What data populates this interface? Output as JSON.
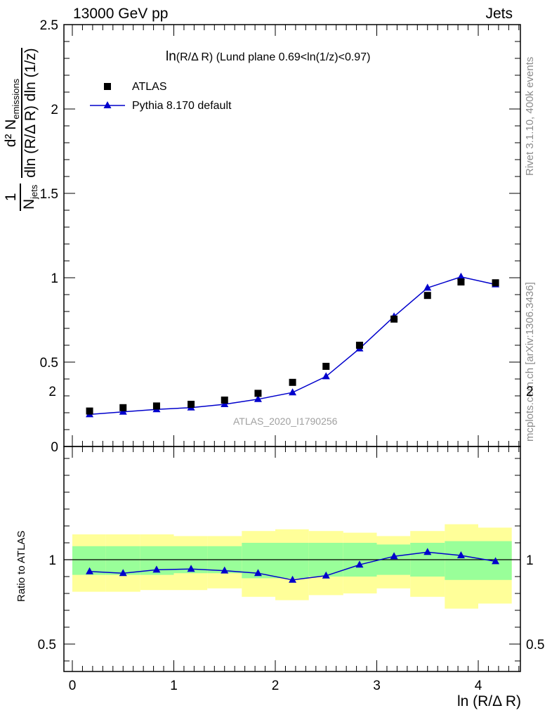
{
  "header": {
    "left": "13000 GeV pp",
    "right": "Jets"
  },
  "plot_title": {
    "main": "ln",
    "rest": "(R/Δ R) (Lund plane 0.69<ln(1/z)<0.97)"
  },
  "watermark": "ATLAS_2020_I1790256",
  "side_labels": {
    "rivet": "Rivet 3.1.10,  400k events",
    "mcplots": "mcplots.cern.ch [arXiv:1306.3436]"
  },
  "y_axis_main": {
    "frac_num": "1",
    "frac_den_n": "N",
    "frac_den_n_sub": "jets",
    "label_num": "d² N",
    "label_num_sub": "emissions",
    "label_den": "dln (R/Δ R) dln (1/z)"
  },
  "y_axis_ratio": "Ratio to ATLAS",
  "x_axis": "ln (R/Δ R)",
  "legend": [
    {
      "name": "ATLAS",
      "marker": "square",
      "color": "#000000"
    },
    {
      "name": "Pythia 8.170 default",
      "marker": "triangle",
      "color": "#0000cc"
    }
  ],
  "chart_data": [
    {
      "type": "scatter",
      "panel": "main",
      "x": [
        0.17,
        0.5,
        0.83,
        1.17,
        1.5,
        1.83,
        2.17,
        2.5,
        2.83,
        3.17,
        3.5,
        3.83,
        4.17
      ],
      "series": [
        {
          "name": "ATLAS",
          "values": [
            0.21,
            0.23,
            0.24,
            0.25,
            0.275,
            0.315,
            0.38,
            0.475,
            0.6,
            0.755,
            0.895,
            0.975,
            0.97
          ]
        },
        {
          "name": "Pythia 8.170 default",
          "values": [
            0.19,
            0.205,
            0.22,
            0.23,
            0.25,
            0.28,
            0.32,
            0.415,
            0.58,
            0.77,
            0.94,
            1.005,
            0.96
          ]
        }
      ],
      "xlim": [
        -0.1,
        4.4
      ],
      "ylim": [
        0,
        2.5
      ],
      "yticks": [
        "0",
        "0.5",
        "1",
        "1.5",
        "2",
        "2.5"
      ],
      "xticks": [
        "0",
        "1",
        "2",
        "3",
        "4"
      ]
    },
    {
      "type": "line",
      "panel": "ratio",
      "x": [
        0.17,
        0.5,
        0.83,
        1.17,
        1.5,
        1.83,
        2.17,
        2.5,
        2.83,
        3.17,
        3.5,
        3.83,
        4.17
      ],
      "bin_edges": [
        0,
        0.33,
        0.67,
        1.0,
        1.33,
        1.67,
        2.0,
        2.33,
        2.67,
        3.0,
        3.33,
        3.67,
        4.0,
        4.33
      ],
      "series": [
        {
          "name": "Pythia 8.170 default",
          "values": [
            0.93,
            0.92,
            0.94,
            0.945,
            0.935,
            0.92,
            0.88,
            0.905,
            0.97,
            1.02,
            1.045,
            1.025,
            0.99
          ]
        }
      ],
      "band_inner_low": [
        0.91,
        0.91,
        0.91,
        0.92,
        0.92,
        0.89,
        0.89,
        0.9,
        0.9,
        0.91,
        0.9,
        0.88,
        0.88
      ],
      "band_inner_high": [
        1.08,
        1.08,
        1.08,
        1.08,
        1.08,
        1.1,
        1.1,
        1.1,
        1.1,
        1.09,
        1.1,
        1.11,
        1.11
      ],
      "band_outer_low": [
        0.81,
        0.81,
        0.82,
        0.82,
        0.83,
        0.78,
        0.76,
        0.79,
        0.8,
        0.83,
        0.78,
        0.71,
        0.74
      ],
      "band_outer_high": [
        1.15,
        1.15,
        1.15,
        1.14,
        1.14,
        1.17,
        1.18,
        1.17,
        1.16,
        1.14,
        1.17,
        1.21,
        1.19
      ],
      "ylim": [
        0.35,
        2.3
      ],
      "yticks": [
        "0.5",
        "1",
        "2"
      ],
      "band_colors": {
        "inner": "#99ff99",
        "outer": "#ffff99"
      }
    }
  ]
}
